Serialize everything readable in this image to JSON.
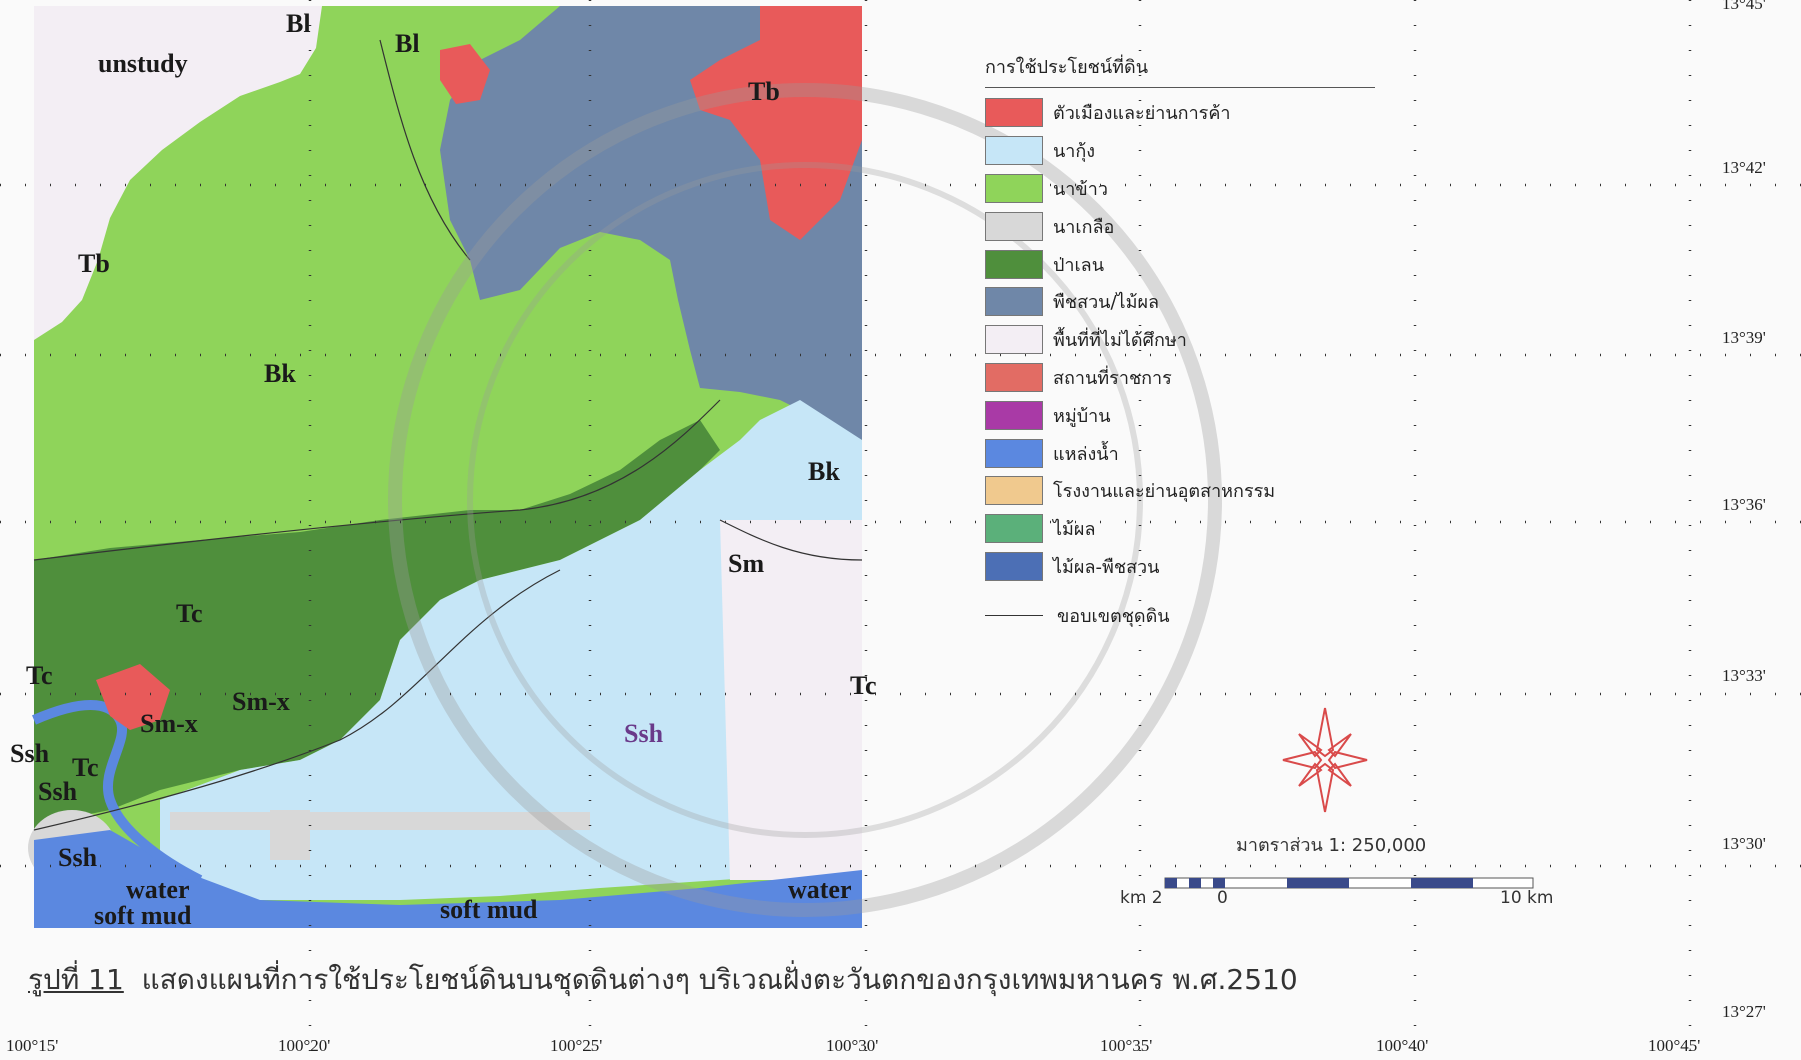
{
  "caption": {
    "number": "รูปที่ 11",
    "text": "แสดงแผนที่การใช้ประโยชน์ดินบนชุดดินต่างๆ บริเวณฝั่งตะวันตกของกรุงเทพมหานคร พ.ศ.2510"
  },
  "legend": {
    "title": "การใช้ประโยชน์ที่ดิน",
    "items": [
      {
        "label": "ตัวเมืองและย่านการค้า",
        "color": "#e85a5a"
      },
      {
        "label": "นากุ้ง",
        "color": "#c6e6f7"
      },
      {
        "label": "นาข้าว",
        "color": "#8fd45a"
      },
      {
        "label": "นาเกลือ",
        "color": "#d8d8d8"
      },
      {
        "label": "ป่าเลน",
        "color": "#4f8f3c"
      },
      {
        "label": "พืชสวน/ไม้ผล",
        "color": "#6f87a8"
      },
      {
        "label": "พื้นที่ที่ไม่ได้ศึกษา",
        "color": "#f3eef4"
      },
      {
        "label": "สถานที่ราชการ",
        "color": "#e26c64"
      },
      {
        "label": "หมู่บ้าน",
        "color": "#a93aa6"
      },
      {
        "label": "แหล่งน้ำ",
        "color": "#5b88e0"
      },
      {
        "label": "โรงงานและย่านอุตสาหกรรม",
        "color": "#f0c98e"
      },
      {
        "label": "ไม้ผล",
        "color": "#5bb07a"
      },
      {
        "label": "ไม้ผล-พืชสวน",
        "color": "#4c6fb5"
      }
    ],
    "boundary_label": "ขอบเขตชุดดิน"
  },
  "scale": {
    "title": "มาตราส่วน 1: 250,000",
    "left_label": "km 2",
    "zero_label": "0",
    "right_label": "10 km"
  },
  "axis": {
    "longitudes": [
      "100°15'",
      "100°20'",
      "100°25'",
      "100°30'",
      "100°35'",
      "100°40'",
      "100°45'"
    ],
    "latitudes": [
      "13°45'",
      "13°42'",
      "13°39'",
      "13°36'",
      "13°33'",
      "13°30'",
      "13°27'"
    ]
  },
  "soil_labels": [
    {
      "text": "unstudy"
    },
    {
      "text": "Bl"
    },
    {
      "text": "Bl"
    },
    {
      "text": "Tb"
    },
    {
      "text": "Tb"
    },
    {
      "text": "Bk"
    },
    {
      "text": "Bk"
    },
    {
      "text": "Sm"
    },
    {
      "text": "Tc"
    },
    {
      "text": "Tc"
    },
    {
      "text": "Tc"
    },
    {
      "text": "Tc"
    },
    {
      "text": "Sm-x"
    },
    {
      "text": "Sm-x"
    },
    {
      "text": "Ssh"
    },
    {
      "text": "Ssh"
    },
    {
      "text": "Ssh"
    },
    {
      "text": "Ssh"
    },
    {
      "text": "water"
    },
    {
      "text": "soft mud"
    },
    {
      "text": "soft mud"
    },
    {
      "text": "water"
    }
  ]
}
